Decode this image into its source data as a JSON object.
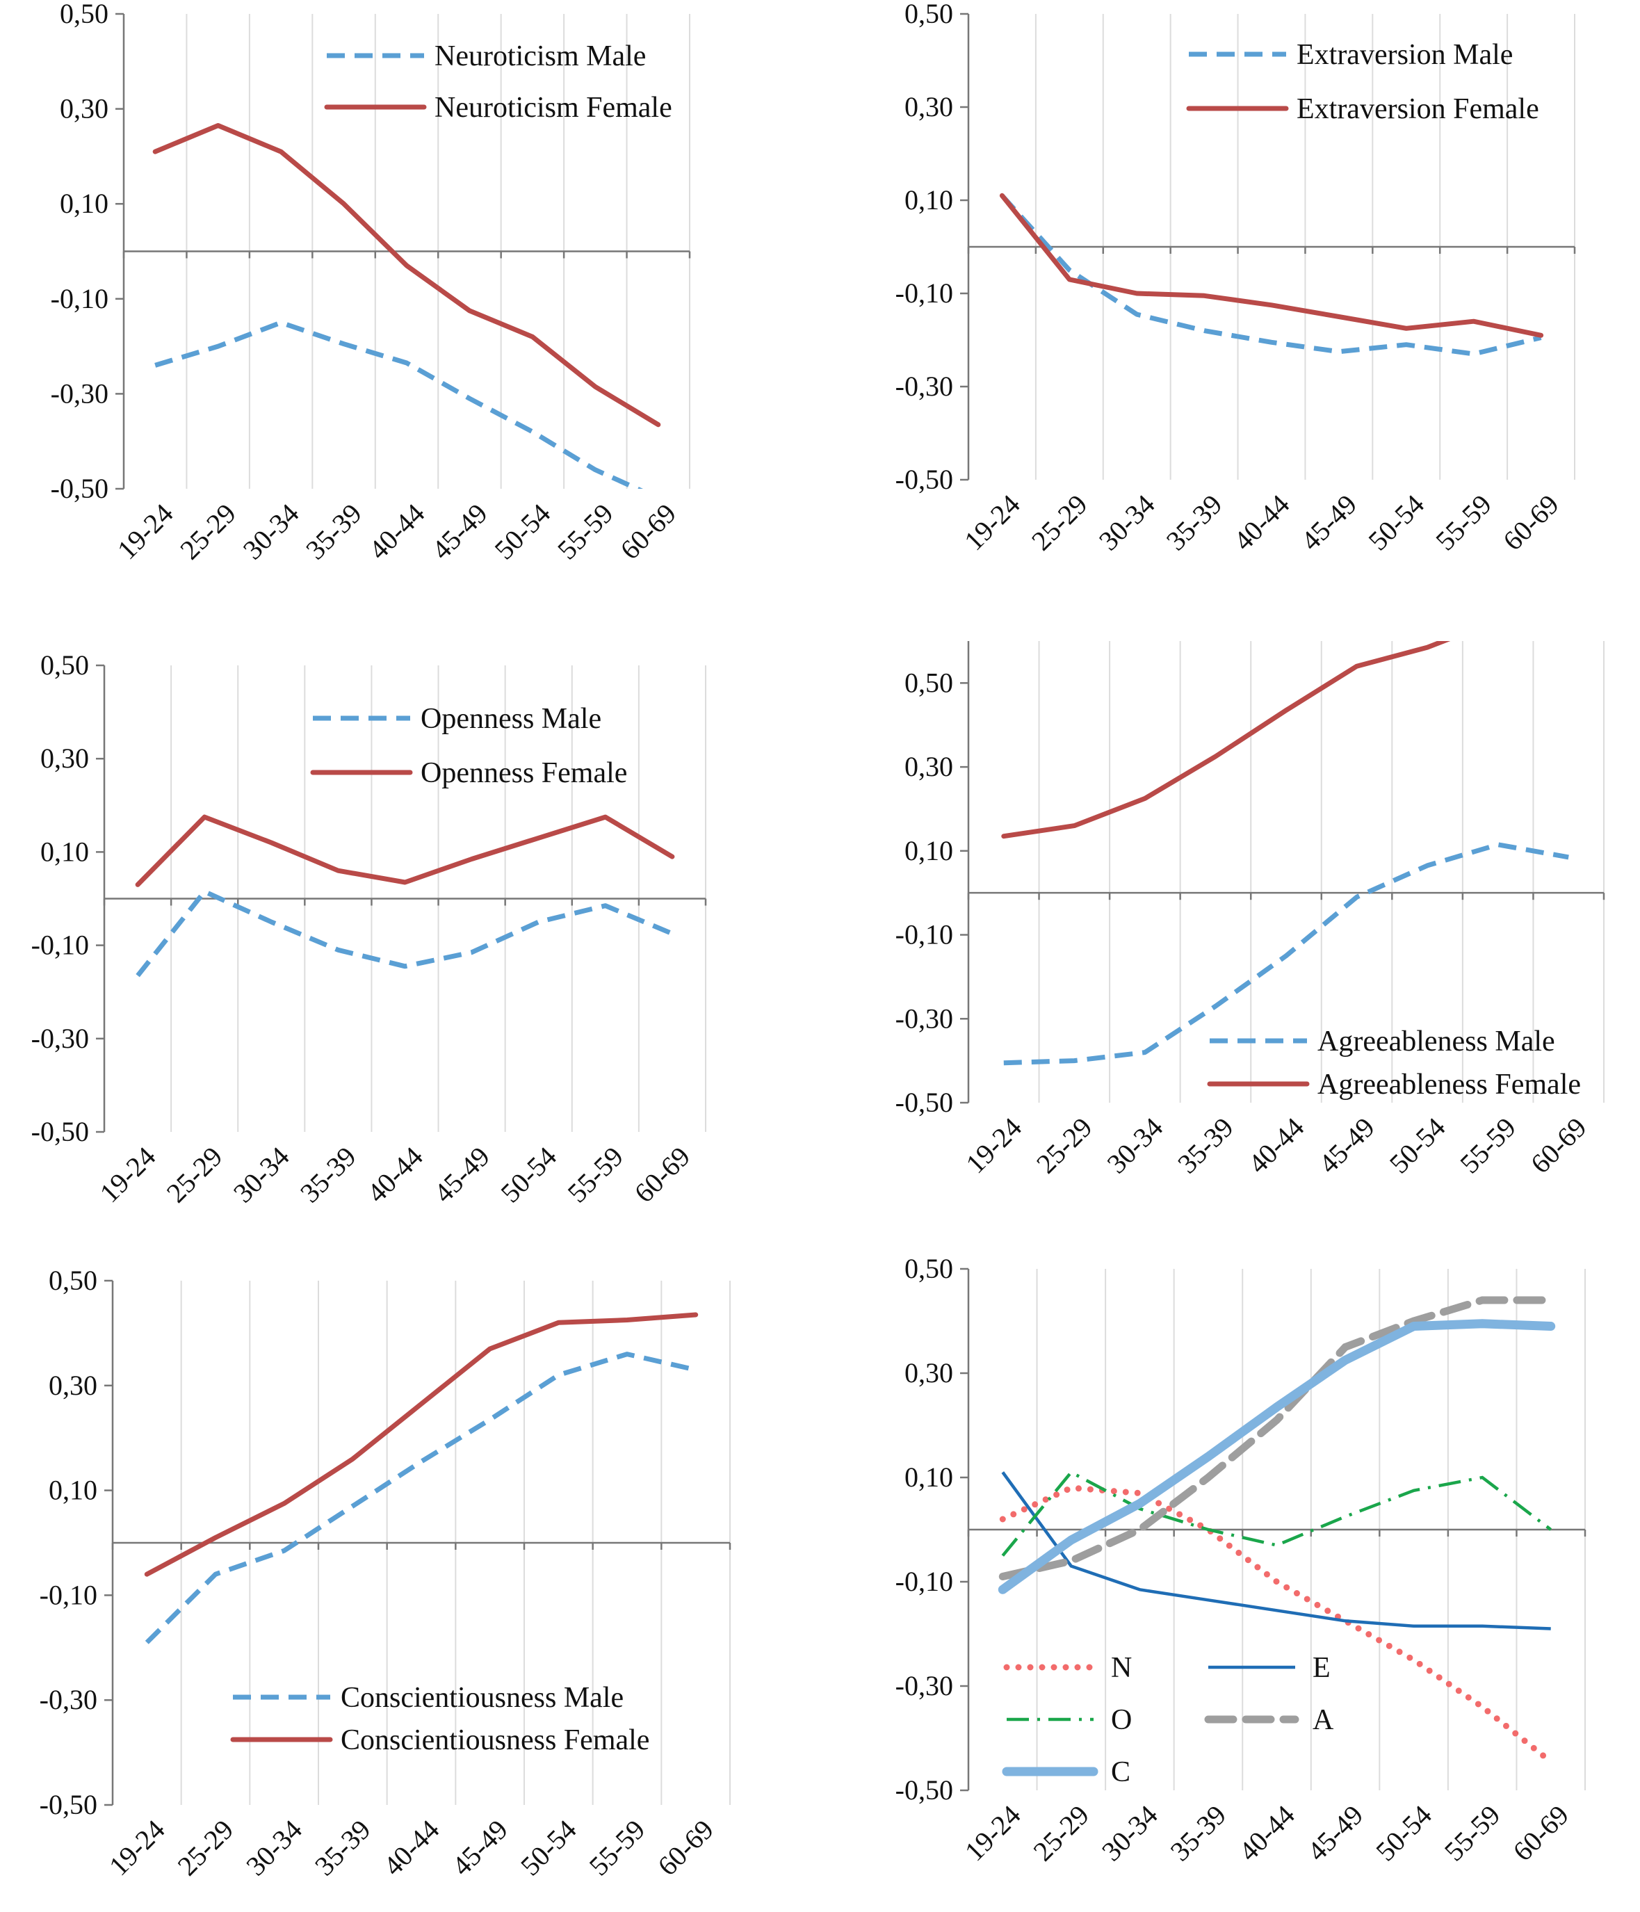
{
  "palette": {
    "male": "#5a9fd4",
    "female": "#b94a48",
    "N": "#f26b6b",
    "E": "#1f6db5",
    "O": "#1aa64b",
    "A": "#9e9e9e",
    "C": "#7fb3df",
    "grid": "#dcdcdc",
    "axis": "#777777"
  },
  "chart_data": [
    {
      "id": "neuroticism",
      "type": "line",
      "categories": [
        "19-24",
        "25-29",
        "30-34",
        "35-39",
        "40-44",
        "45-49",
        "50-54",
        "55-59",
        "60-69"
      ],
      "ylim": [
        -0.5,
        0.5
      ],
      "yticks": [
        "0,50",
        "0,30",
        "0,10",
        "-0,10",
        "-0,30",
        "-0,50"
      ],
      "legend": "top-right",
      "series": [
        {
          "name": "Neuroticism Male",
          "style": "dashed",
          "color": "#5a9fd4",
          "values": [
            -0.24,
            -0.2,
            -0.15,
            -0.195,
            -0.235,
            -0.31,
            -0.38,
            -0.46,
            -0.52
          ]
        },
        {
          "name": "Neuroticism Female",
          "style": "solid",
          "color": "#b94a48",
          "values": [
            0.21,
            0.265,
            0.21,
            0.1,
            -0.03,
            -0.125,
            -0.18,
            -0.285,
            -0.365
          ]
        }
      ]
    },
    {
      "id": "extraversion",
      "type": "line",
      "categories": [
        "19-24",
        "25-29",
        "30-34",
        "35-39",
        "40-44",
        "45-49",
        "50-54",
        "55-59",
        "60-69"
      ],
      "ylim": [
        -0.5,
        0.5
      ],
      "yticks": [
        "0,50",
        "0,30",
        "0,10",
        "-0,10",
        "-0,30",
        "-0,50"
      ],
      "legend": "top-right",
      "series": [
        {
          "name": "Extraversion Male",
          "style": "dashed",
          "color": "#5a9fd4",
          "values": [
            0.11,
            -0.05,
            -0.145,
            -0.18,
            -0.205,
            -0.225,
            -0.21,
            -0.23,
            -0.195
          ]
        },
        {
          "name": "Extraversion Female",
          "style": "solid",
          "color": "#b94a48",
          "values": [
            0.11,
            -0.07,
            -0.1,
            -0.105,
            -0.125,
            -0.15,
            -0.175,
            -0.16,
            -0.19
          ]
        }
      ]
    },
    {
      "id": "openness",
      "type": "line",
      "categories": [
        "19-24",
        "25-29",
        "30-34",
        "35-39",
        "40-44",
        "45-49",
        "50-54",
        "55-59",
        "60-69"
      ],
      "ylim": [
        -0.5,
        0.5
      ],
      "yticks": [
        "0,50",
        "0,30",
        "0,10",
        "-0,10",
        "-0,30",
        "-0,50"
      ],
      "legend": "top-right",
      "series": [
        {
          "name": "Openness Male",
          "style": "dashed",
          "color": "#5a9fd4",
          "values": [
            -0.165,
            0.015,
            -0.05,
            -0.11,
            -0.145,
            -0.115,
            -0.05,
            -0.015,
            -0.075
          ]
        },
        {
          "name": "Openness Female",
          "style": "solid",
          "color": "#b94a48",
          "values": [
            0.03,
            0.175,
            0.12,
            0.06,
            0.035,
            0.085,
            0.13,
            0.175,
            0.09
          ]
        }
      ]
    },
    {
      "id": "agreeableness",
      "type": "line",
      "categories": [
        "19-24",
        "25-29",
        "30-34",
        "35-39",
        "40-44",
        "45-49",
        "50-54",
        "55-59",
        "60-69"
      ],
      "ylim": [
        -0.5,
        0.6
      ],
      "yticks": [
        "0,50",
        "0,30",
        "0,10",
        "-0,10",
        "-0,30",
        "-0,50"
      ],
      "legend": "bottom-right",
      "series": [
        {
          "name": "Agreeableness Male",
          "style": "dashed",
          "color": "#5a9fd4",
          "values": [
            -0.405,
            -0.4,
            -0.38,
            -0.27,
            -0.15,
            -0.01,
            0.065,
            0.115,
            0.085
          ]
        },
        {
          "name": "Agreeableness Female",
          "style": "solid",
          "color": "#b94a48",
          "values": [
            0.135,
            0.16,
            0.225,
            0.325,
            0.435,
            0.54,
            0.585,
            0.65,
            0.68
          ]
        }
      ]
    },
    {
      "id": "conscientiousness",
      "type": "line",
      "categories": [
        "19-24",
        "25-29",
        "30-34",
        "35-39",
        "40-44",
        "45-49",
        "50-54",
        "55-59",
        "60-69"
      ],
      "ylim": [
        -0.5,
        0.5
      ],
      "yticks": [
        "0,50",
        "0,30",
        "0,10",
        "-0,10",
        "-0,30",
        "-0,50"
      ],
      "legend": "bottom-right",
      "series": [
        {
          "name": "Conscientiousness Male",
          "style": "dashed",
          "color": "#5a9fd4",
          "values": [
            -0.19,
            -0.06,
            -0.015,
            0.07,
            0.155,
            0.235,
            0.32,
            0.36,
            0.33
          ]
        },
        {
          "name": "Conscientiousness Female",
          "style": "solid",
          "color": "#b94a48",
          "values": [
            -0.06,
            0.01,
            0.075,
            0.16,
            0.265,
            0.37,
            0.42,
            0.425,
            0.435
          ]
        }
      ]
    },
    {
      "id": "summary",
      "type": "line",
      "categories": [
        "19-24",
        "25-29",
        "30-34",
        "35-39",
        "40-44",
        "45-49",
        "50-54",
        "55-59",
        "60-69"
      ],
      "ylim": [
        -0.5,
        0.5
      ],
      "yticks": [
        "0,50",
        "0,30",
        "0,10",
        "-0,10",
        "-0,30",
        "-0,50"
      ],
      "legend": "bottom-left",
      "series": [
        {
          "name": "N",
          "style": "dotted",
          "color": "#f26b6b",
          "values": [
            0.02,
            0.08,
            0.07,
            0.0,
            -0.1,
            -0.175,
            -0.25,
            -0.34,
            -0.445
          ]
        },
        {
          "name": "E",
          "style": "thin",
          "color": "#1f6db5",
          "values": [
            0.11,
            -0.07,
            -0.115,
            -0.135,
            -0.155,
            -0.175,
            -0.185,
            -0.185,
            -0.19
          ]
        },
        {
          "name": "O",
          "style": "dashdot",
          "color": "#1aa64b",
          "values": [
            -0.05,
            0.11,
            0.04,
            0.0,
            -0.03,
            0.025,
            0.075,
            0.1,
            0.0
          ]
        },
        {
          "name": "A",
          "style": "longdash",
          "color": "#9e9e9e",
          "values": [
            -0.09,
            -0.06,
            0.0,
            0.1,
            0.21,
            0.35,
            0.4,
            0.44,
            0.44
          ]
        },
        {
          "name": "C",
          "style": "thick",
          "color": "#7fb3df",
          "values": [
            -0.115,
            -0.02,
            0.05,
            0.14,
            0.235,
            0.325,
            0.39,
            0.395,
            0.39
          ]
        }
      ]
    }
  ]
}
